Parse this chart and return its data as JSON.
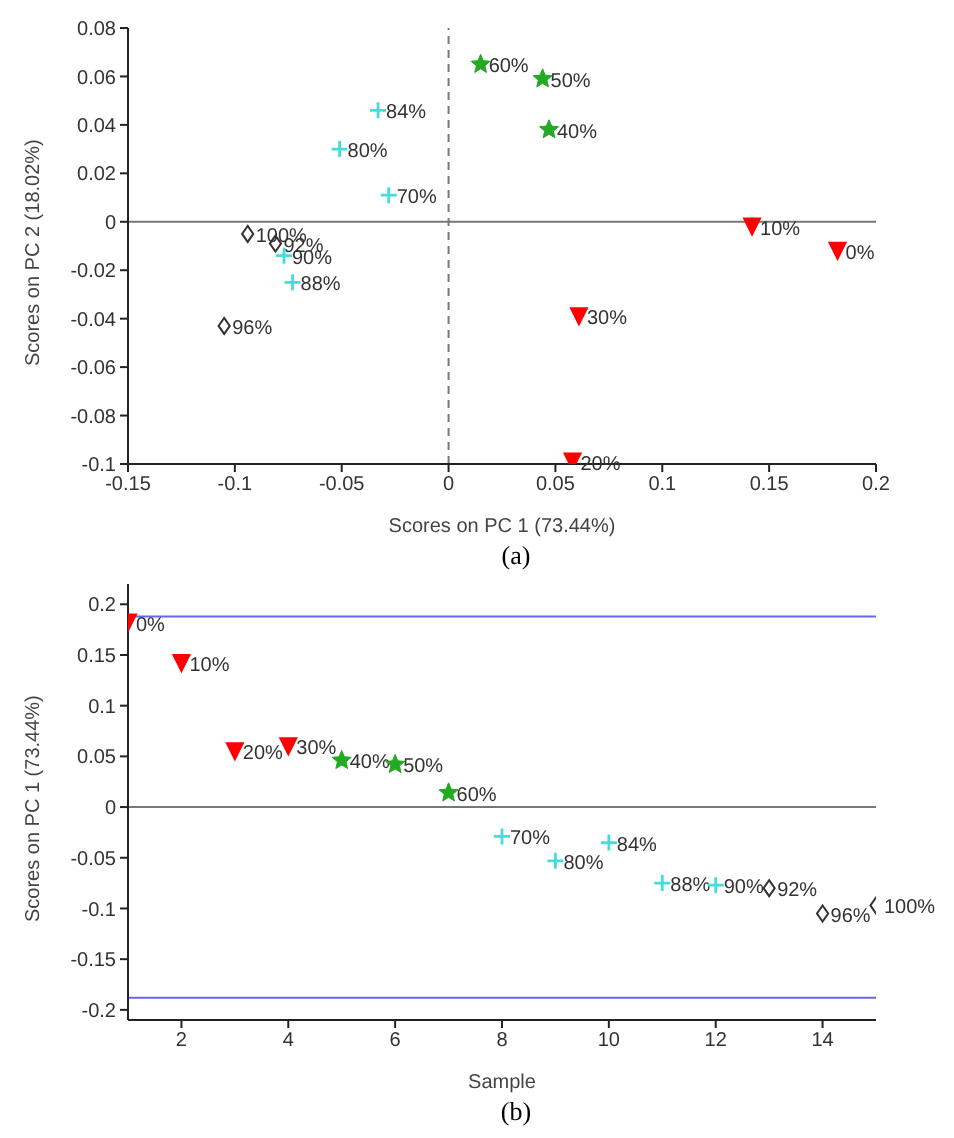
{
  "chart_data": [
    {
      "type": "scatter",
      "xlabel": "Scores on PC 1 (73.44%)",
      "ylabel": "Scores on PC 2 (18.02%)",
      "annotations": [
        "(a)",
        {
          "text": "0%",
          "x": 0.182,
          "y": -0.012
        },
        {
          "text": "10%",
          "x": 0.142,
          "y": -0.002
        },
        {
          "text": "20%",
          "x": 0.058,
          "y": -0.099
        },
        {
          "text": "30%",
          "x": 0.061,
          "y": -0.039
        },
        {
          "text": "40%",
          "x": 0.047,
          "y": 0.038
        },
        {
          "text": "50%",
          "x": 0.044,
          "y": 0.059
        },
        {
          "text": "60%",
          "x": 0.015,
          "y": 0.065
        },
        {
          "text": "70%",
          "x": -0.028,
          "y": 0.011
        },
        {
          "text": "80%",
          "x": -0.051,
          "y": 0.03
        },
        {
          "text": "84%",
          "x": -0.033,
          "y": 0.046
        },
        {
          "text": "88%",
          "x": -0.073,
          "y": -0.025
        },
        {
          "text": "90%",
          "x": -0.077,
          "y": -0.014
        },
        {
          "text": "92%",
          "x": -0.081,
          "y": -0.009
        },
        {
          "text": "96%",
          "x": -0.105,
          "y": -0.043
        },
        {
          "text": "100%",
          "x": -0.094,
          "y": -0.005
        }
      ],
      "xlim": [
        -0.15,
        0.2
      ],
      "xticks": [
        -0.15,
        -0.1,
        -0.05,
        0,
        0.05,
        0.1,
        0.15,
        0.2
      ],
      "ylim": [
        -0.1,
        0.08
      ],
      "yticks": [
        -0.1,
        -0.08,
        -0.06,
        -0.04,
        -0.02,
        0,
        0.02,
        0.04,
        0.06,
        0.08
      ],
      "grid": false,
      "legend": false,
      "ref_lines": [
        {
          "axis": "x",
          "value": 0,
          "color": "#777777",
          "line_style": "dashed"
        },
        {
          "axis": "y",
          "value": 0,
          "color": "#777777",
          "line_style": "solid"
        }
      ],
      "series": [
        {
          "color": "#ff0000",
          "marker": "triangle",
          "x": [
            0.182,
            0.142,
            0.058,
            0.061
          ],
          "values": [
            -0.012,
            -0.002,
            -0.099,
            -0.039
          ]
        },
        {
          "color": "#22aa22",
          "marker": "star",
          "x": [
            0.047,
            0.044,
            0.015
          ],
          "values": [
            0.038,
            0.059,
            0.065
          ]
        },
        {
          "color": "#44dddd",
          "marker": "cross",
          "x": [
            -0.028,
            -0.051,
            -0.033,
            -0.073,
            -0.077
          ],
          "values": [
            0.011,
            0.03,
            0.046,
            -0.025,
            -0.014
          ]
        },
        {
          "color": "#333333",
          "marker": "diamond",
          "x": [
            -0.081,
            -0.105,
            -0.094
          ],
          "values": [
            -0.009,
            -0.043,
            -0.005
          ]
        }
      ]
    },
    {
      "type": "scatter",
      "xlabel": "Sample",
      "ylabel": "Scores on PC 1 (73.44%)",
      "annotations": [
        "(b)",
        {
          "text": "0%",
          "x": 1,
          "y": 0.182
        },
        {
          "text": "10%",
          "x": 2,
          "y": 0.142
        },
        {
          "text": "20%",
          "x": 3,
          "y": 0.055
        },
        {
          "text": "30%",
          "x": 4,
          "y": 0.06
        },
        {
          "text": "40%",
          "x": 5,
          "y": 0.046
        },
        {
          "text": "50%",
          "x": 6,
          "y": 0.042
        },
        {
          "text": "60%",
          "x": 7,
          "y": 0.014
        },
        {
          "text": "70%",
          "x": 8,
          "y": -0.029
        },
        {
          "text": "80%",
          "x": 9,
          "y": -0.053
        },
        {
          "text": "84%",
          "x": 10,
          "y": -0.035
        },
        {
          "text": "88%",
          "x": 11,
          "y": -0.075
        },
        {
          "text": "90%",
          "x": 12,
          "y": -0.077
        },
        {
          "text": "92%",
          "x": 13,
          "y": -0.08
        },
        {
          "text": "96%",
          "x": 14,
          "y": -0.105
        },
        {
          "text": "100%",
          "x": 15,
          "y": -0.097
        }
      ],
      "xlim": [
        1,
        15
      ],
      "xticks": [
        2,
        4,
        6,
        8,
        10,
        12,
        14
      ],
      "ylim": [
        -0.21,
        0.22
      ],
      "yticks": [
        -0.2,
        -0.15,
        -0.1,
        -0.05,
        0,
        0.05,
        0.1,
        0.15,
        0.2
      ],
      "grid": false,
      "legend": false,
      "ref_lines": [
        {
          "axis": "y",
          "value": 0.188,
          "color": "#6666ee",
          "line_style": "solid"
        },
        {
          "axis": "y",
          "value": -0.188,
          "color": "#6666ee",
          "line_style": "solid"
        },
        {
          "axis": "y",
          "value": 0,
          "color": "#777777",
          "line_style": "solid"
        }
      ],
      "series": [
        {
          "color": "#ff0000",
          "marker": "triangle",
          "x": [
            1,
            2,
            3,
            4
          ],
          "values": [
            0.182,
            0.142,
            0.055,
            0.06
          ]
        },
        {
          "color": "#22aa22",
          "marker": "star",
          "x": [
            5,
            6,
            7
          ],
          "values": [
            0.046,
            0.042,
            0.014
          ]
        },
        {
          "color": "#44dddd",
          "marker": "cross",
          "x": [
            8,
            9,
            10,
            11,
            12
          ],
          "values": [
            -0.029,
            -0.053,
            -0.035,
            -0.075,
            -0.077
          ]
        },
        {
          "color": "#333333",
          "marker": "diamond",
          "x": [
            13,
            14,
            15
          ],
          "values": [
            -0.08,
            -0.105,
            -0.097
          ]
        }
      ]
    }
  ]
}
